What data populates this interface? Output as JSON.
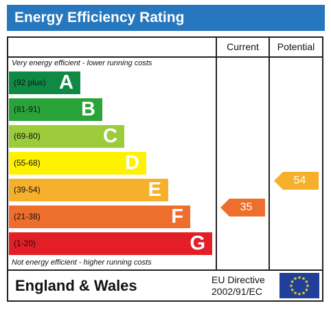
{
  "title": "Energy Efficiency Rating",
  "headers": {
    "current": "Current",
    "potential": "Potential"
  },
  "notes": {
    "top": "Very energy efficient - lower running costs",
    "bottom": "Not energy efficient - higher running costs"
  },
  "footer": {
    "region": "England & Wales",
    "directive_line1": "EU Directive",
    "directive_line2": "2002/91/EC"
  },
  "chart_data": {
    "type": "bar",
    "categories": [
      "A",
      "B",
      "C",
      "D",
      "E",
      "F",
      "G"
    ],
    "bands": [
      {
        "letter": "A",
        "range": "(92 plus)",
        "color": "#0f8a44",
        "letter_color": "#ffffff",
        "min": 92,
        "max": 100
      },
      {
        "letter": "B",
        "range": "(81-91)",
        "color": "#2aa43a",
        "letter_color": "#ffffff",
        "min": 81,
        "max": 91
      },
      {
        "letter": "C",
        "range": "(69-80)",
        "color": "#9ccb3b",
        "letter_color": "#ffffff",
        "min": 69,
        "max": 80
      },
      {
        "letter": "D",
        "range": "(55-68)",
        "color": "#fff200",
        "letter_color": "#ffffff",
        "min": 55,
        "max": 68
      },
      {
        "letter": "E",
        "range": "(39-54)",
        "color": "#f7b02b",
        "letter_color": "#ffffff",
        "min": 39,
        "max": 54
      },
      {
        "letter": "F",
        "range": "(21-38)",
        "color": "#ee6f2d",
        "letter_color": "#ffffff",
        "min": 21,
        "max": 38
      },
      {
        "letter": "G",
        "range": "(1-20)",
        "color": "#e31e26",
        "letter_color": "#ffffff",
        "min": 1,
        "max": 20
      }
    ],
    "current": {
      "value": 35,
      "band": "F",
      "color": "#ee6f2d"
    },
    "potential": {
      "value": 54,
      "band": "E",
      "color": "#f7b02b"
    }
  },
  "colors": {
    "title_bg": "#2677bd",
    "flag_bg": "#1f3f99",
    "flag_stars": "#ffdd00"
  }
}
